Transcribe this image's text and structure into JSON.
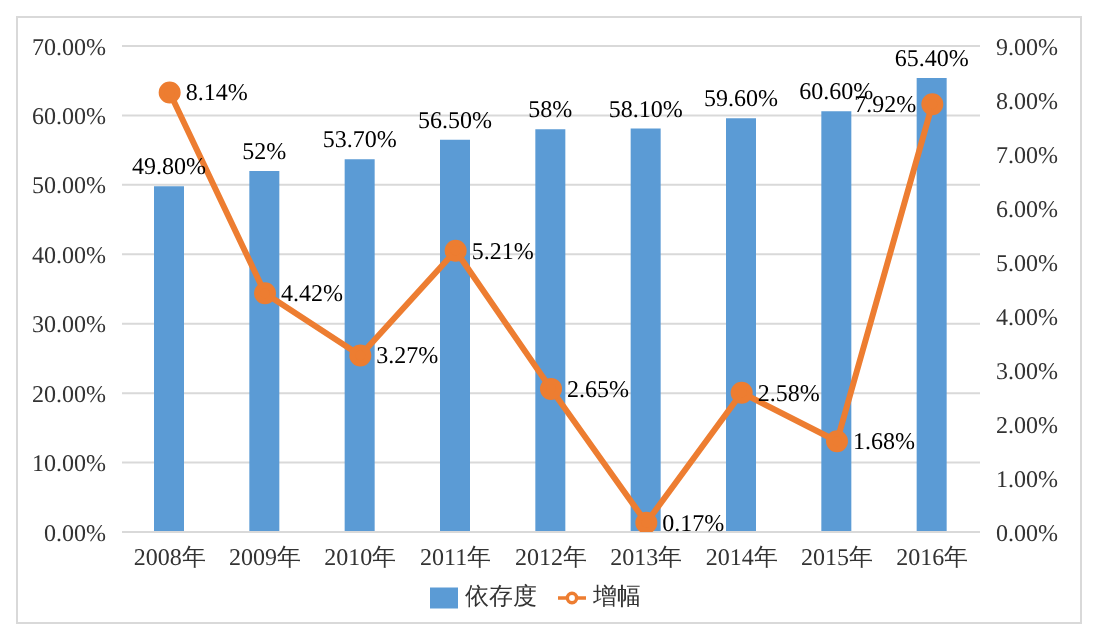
{
  "chart_data": {
    "type": "bar",
    "categories": [
      "2008年",
      "2009年",
      "2010年",
      "2011年",
      "2012年",
      "2013年",
      "2014年",
      "2015年",
      "2016年"
    ],
    "series": [
      {
        "name": "依存度",
        "color": "#5b9bd5",
        "values": [
          49.8,
          52,
          53.7,
          56.5,
          58,
          58.1,
          59.6,
          60.6,
          65.4
        ],
        "value_labels": [
          "49.80%",
          "52%",
          "53.70%",
          "56.50%",
          "58%",
          "58.10%",
          "59.60%",
          "60.60%",
          "65.40%"
        ]
      },
      {
        "name": "增幅",
        "type": "line",
        "axis": "y2",
        "color": "#ed7d31",
        "marker": "circle",
        "values": [
          8.14,
          4.42,
          3.27,
          5.21,
          2.65,
          0.17,
          2.58,
          1.68,
          7.92
        ],
        "value_labels": [
          "8.14%",
          "4.42%",
          "3.27%",
          "5.21%",
          "2.65%",
          "0.17%",
          "2.58%",
          "1.68%",
          "7.92%"
        ]
      }
    ],
    "ylim": [
      0,
      70
    ],
    "yticks": [
      {
        "value": 0,
        "label": "0.00%"
      },
      {
        "value": 10,
        "label": "10.00%"
      },
      {
        "value": 20,
        "label": "20.00%"
      },
      {
        "value": 30,
        "label": "30.00%"
      },
      {
        "value": 40,
        "label": "40.00%"
      },
      {
        "value": 50,
        "label": "50.00%"
      },
      {
        "value": 60,
        "label": "60.00%"
      },
      {
        "value": 70,
        "label": "70.00%"
      }
    ],
    "y2lim": [
      0,
      9
    ],
    "y2ticks": [
      {
        "value": 0,
        "label": "0.00%"
      },
      {
        "value": 1,
        "label": "1.00%"
      },
      {
        "value": 2,
        "label": "2.00%"
      },
      {
        "value": 3,
        "label": "3.00%"
      },
      {
        "value": 4,
        "label": "4.00%"
      },
      {
        "value": 5,
        "label": "5.00%"
      },
      {
        "value": 6,
        "label": "6.00%"
      },
      {
        "value": 7,
        "label": "7.00%"
      },
      {
        "value": 8,
        "label": "8.00%"
      },
      {
        "value": 9,
        "label": "9.00%"
      }
    ],
    "grid": "y",
    "legend": "bottom"
  }
}
